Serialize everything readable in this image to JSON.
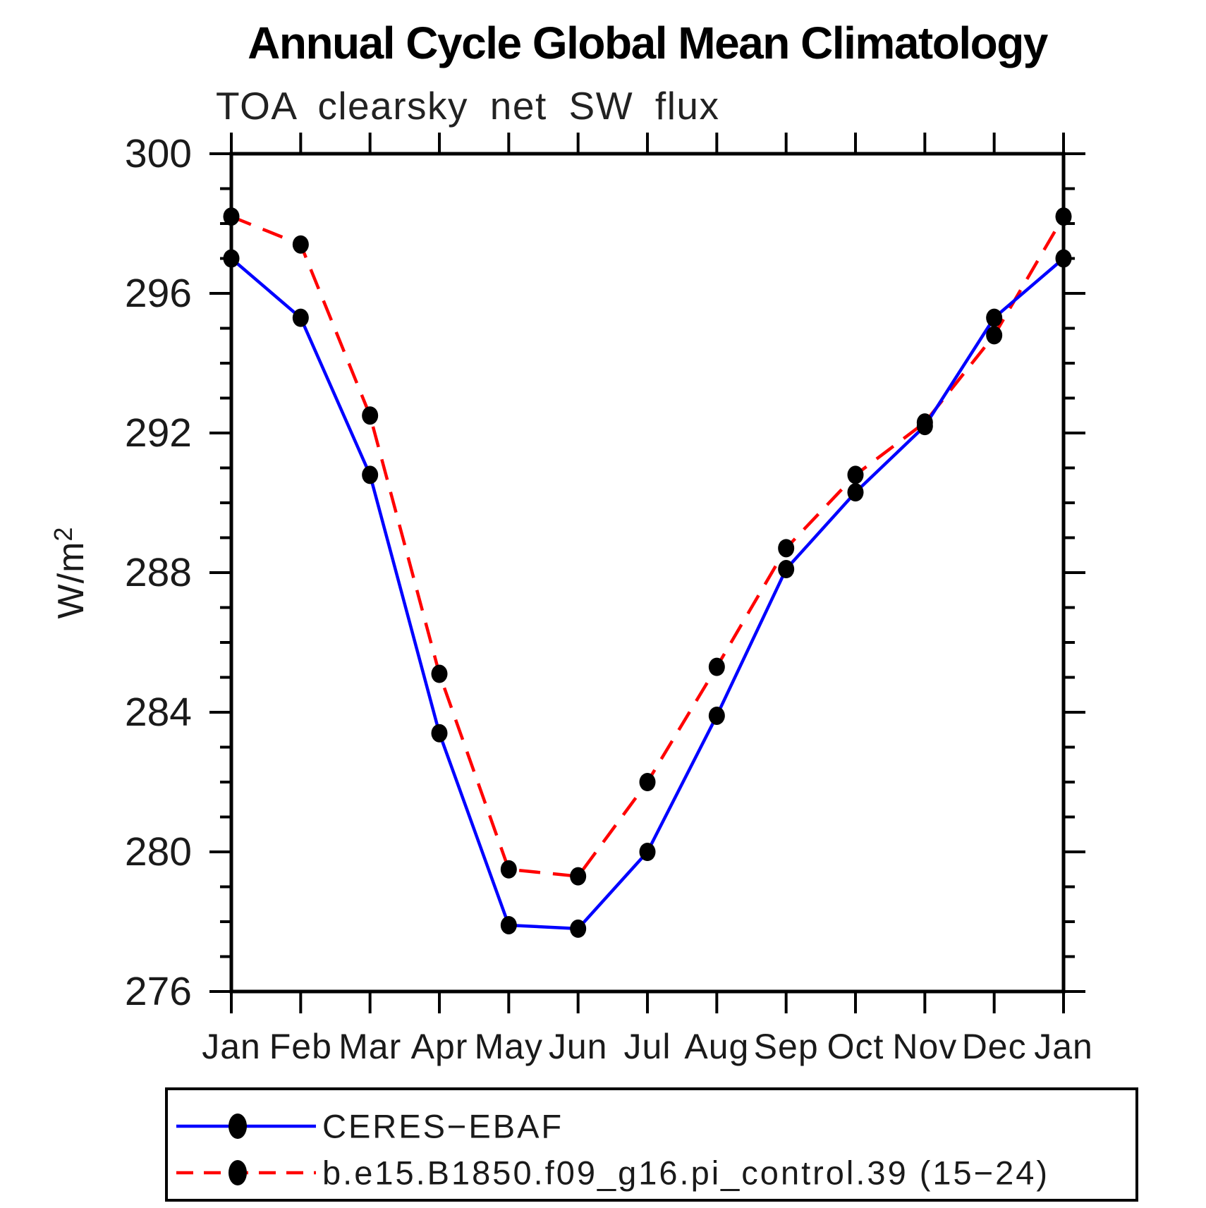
{
  "page": {
    "background": "#ffffff"
  },
  "chart_data": {
    "type": "line",
    "title": "Annual Cycle Global Mean Climatology",
    "subtitle": "TOA clearsky net SW flux",
    "ylabel": "W/m²",
    "xlabel": "",
    "categories": [
      "Jan",
      "Feb",
      "Mar",
      "Apr",
      "May",
      "Jun",
      "Jul",
      "Aug",
      "Sep",
      "Oct",
      "Nov",
      "Dec",
      "Jan"
    ],
    "ylim": [
      276,
      300
    ],
    "yticks_major": [
      276,
      280,
      284,
      288,
      292,
      296,
      300
    ],
    "ytick_minor_step": 1,
    "grid": false,
    "legend_position": "bottom-left",
    "axis_color": "#000000",
    "series": [
      {
        "name": "CERES−EBAF",
        "color": "#0000ff",
        "line_style": "solid",
        "marker": "filled-circle",
        "marker_color": "#000000",
        "values": [
          297.0,
          295.3,
          290.8,
          283.4,
          277.9,
          277.8,
          280.0,
          283.9,
          288.1,
          290.3,
          292.2,
          295.3,
          297.0
        ]
      },
      {
        "name": "b.e15.B1850.f09_g16.pi_control.39 (15−24)",
        "color": "#ff0000",
        "line_style": "dashed",
        "marker": "filled-circle",
        "marker_color": "#000000",
        "values": [
          298.2,
          297.4,
          292.5,
          285.1,
          279.5,
          279.3,
          282.0,
          285.3,
          288.7,
          290.8,
          292.3,
          294.8,
          298.2
        ]
      }
    ]
  }
}
